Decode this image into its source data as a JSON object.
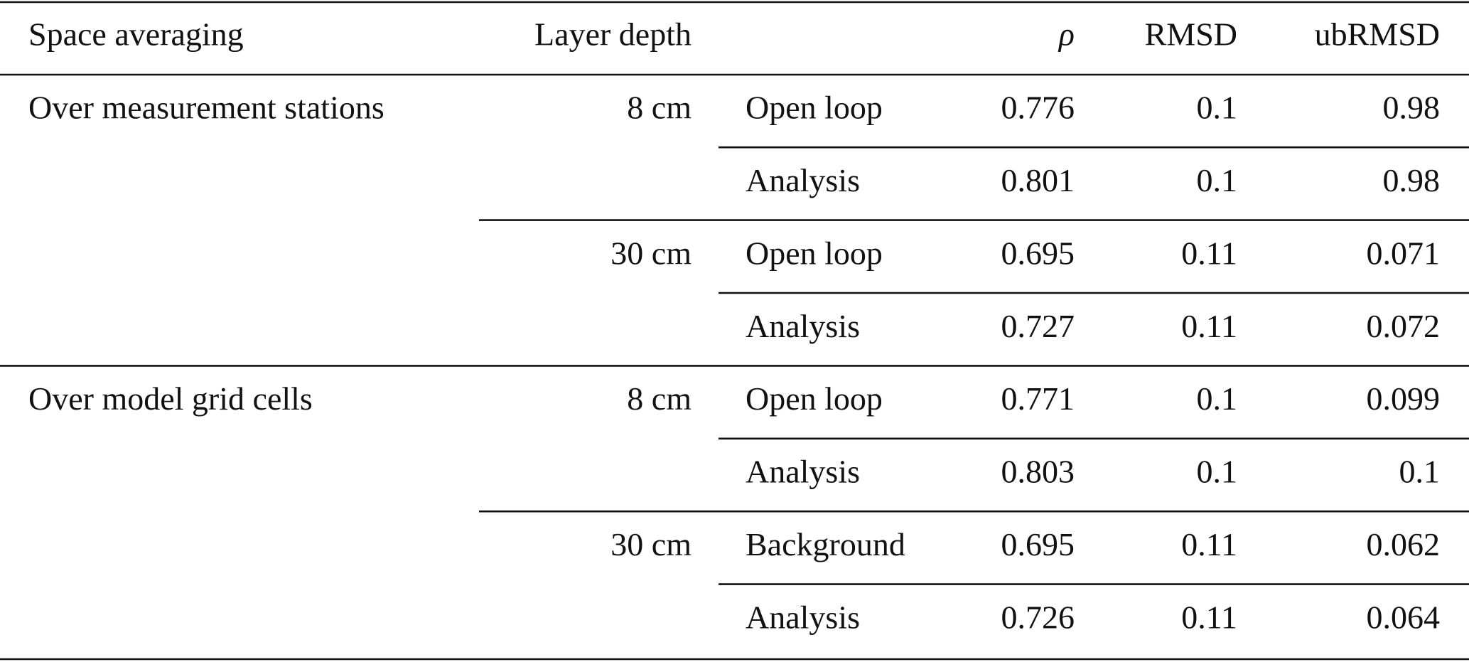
{
  "header": [
    "Space averaging",
    "Layer depth",
    "ρ",
    "RMSD",
    "ubRMSD"
  ],
  "groups": [
    {
      "space": "Over measurement stations",
      "depths": [
        {
          "depth": "8 cm",
          "rows": [
            {
              "method": "Open loop",
              "values": [
                "0.776",
                "0.1",
                "0.98"
              ]
            },
            {
              "method": "Analysis",
              "values": [
                "0.801",
                "0.1",
                "0.98"
              ]
            }
          ]
        },
        {
          "depth": "30 cm",
          "rows": [
            {
              "method": "Open loop",
              "values": [
                "0.695",
                "0.11",
                "0.071"
              ]
            },
            {
              "method": "Analysis",
              "values": [
                "0.727",
                "0.11",
                "0.072"
              ]
            }
          ]
        }
      ]
    },
    {
      "space": "Over model grid cells",
      "depths": [
        {
          "depth": "8 cm",
          "rows": [
            {
              "method": "Open loop",
              "values": [
                "0.771",
                "0.1",
                "0.099"
              ]
            },
            {
              "method": "Analysis",
              "values": [
                "0.803",
                "0.1",
                "0.1"
              ]
            }
          ]
        },
        {
          "depth": "30 cm",
          "rows": [
            {
              "method": "Background",
              "values": [
                "0.695",
                "0.11",
                "0.062"
              ]
            },
            {
              "method": "Analysis",
              "values": [
                "0.726",
                "0.11",
                "0.064"
              ]
            }
          ]
        }
      ]
    }
  ]
}
